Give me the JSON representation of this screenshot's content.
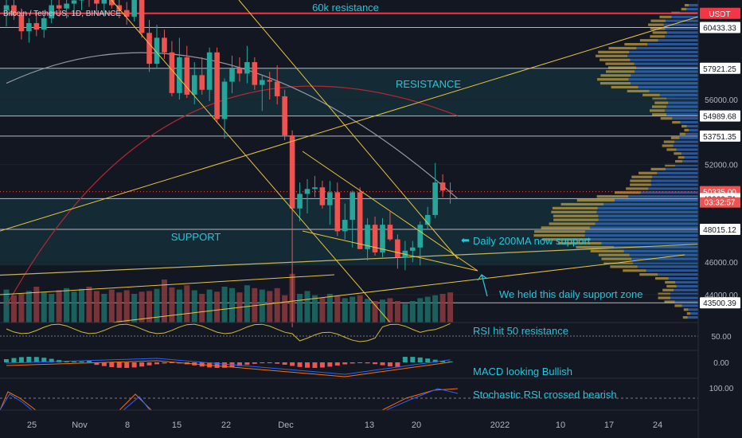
{
  "chart_data": {
    "type": "candlestick",
    "symbol_label": "Bitcoin / TetherUS, 1D, BINANCE",
    "price_axis": {
      "ticks": [
        "56000.00",
        "52000.00",
        "48000.00",
        "46000.00",
        "44000.00"
      ],
      "range": [
        42500,
        62000
      ]
    },
    "tags": [
      {
        "price": 61300,
        "label": "USDT",
        "color": "#f23645",
        "text_color": "#ffffff"
      },
      {
        "price": 60433.33,
        "label": "60433.33",
        "color": "#ffffff",
        "text_color": "#131722"
      },
      {
        "price": 57921.25,
        "label": "57921.25",
        "color": "#ffffff",
        "text_color": "#131722"
      },
      {
        "price": 54989.68,
        "label": "54989.68",
        "color": "#ffffff",
        "text_color": "#131722"
      },
      {
        "price": 53751.35,
        "label": "53751.35",
        "color": "#ffffff",
        "text_color": "#131722"
      },
      {
        "price": 50335.0,
        "label": "50335.00",
        "color": "#ef5350",
        "text_color": "#ffffff"
      },
      {
        "price": 49909.71,
        "label": "49909.71",
        "color": "#ffffff",
        "text_color": "#131722"
      },
      {
        "price": 48015.12,
        "label": "48015.12",
        "color": "#ffffff",
        "text_color": "#131722"
      },
      {
        "price": 43500.39,
        "label": "43500.39",
        "color": "#ffffff",
        "text_color": "#131722"
      }
    ],
    "countdown": "03:32:57",
    "date_axis": [
      "25",
      "Nov",
      "8",
      "15",
      "22",
      "Dec",
      "13",
      "20",
      "2022",
      "10",
      "17",
      "24"
    ],
    "levels": [
      {
        "name": "60k resistance",
        "price": 61300,
        "color": "#f23645"
      },
      {
        "name": "",
        "price": 60433.33,
        "color": "#d1d4dc"
      },
      {
        "name": "",
        "price": 57921.25,
        "color": "#d1d4dc"
      },
      {
        "name": "",
        "price": 54989.68,
        "color": "#d1d4dc"
      },
      {
        "name": "",
        "price": 53751.35,
        "color": "#d1d4dc"
      },
      {
        "name": "",
        "price": 49909.71,
        "color": "#d1d4dc"
      },
      {
        "name": "",
        "price": 48015.12,
        "color": "#d1d4dc"
      },
      {
        "name": "",
        "price": 43500.39,
        "color": "#d1d4dc"
      }
    ],
    "zones": [
      {
        "name": "RESISTANCE",
        "from": 55000,
        "to": 57921.25
      },
      {
        "name": "SUPPORT",
        "from": 45800,
        "to": 49909.71
      }
    ],
    "candles": [
      [
        61500,
        62500,
        60500,
        61800
      ],
      [
        61800,
        62200,
        60900,
        61200
      ],
      [
        61200,
        61600,
        59700,
        60200
      ],
      [
        60200,
        61000,
        59500,
        60700
      ],
      [
        60700,
        61400,
        59900,
        60300
      ],
      [
        60300,
        61200,
        59800,
        61000
      ],
      [
        61000,
        62300,
        60700,
        61800
      ],
      [
        61800,
        62400,
        61100,
        61600
      ],
      [
        61600,
        62200,
        61000,
        61900
      ],
      [
        61900,
        62500,
        61200,
        62100
      ],
      [
        62100,
        62800,
        61500,
        62400
      ],
      [
        62400,
        63000,
        61700,
        62200
      ],
      [
        62200,
        62900,
        61400,
        61900
      ],
      [
        61900,
        62600,
        61100,
        62300
      ],
      [
        62300,
        62700,
        61600,
        61800
      ],
      [
        61800,
        62400,
        61000,
        61500
      ],
      [
        61500,
        62000,
        60600,
        61100
      ],
      [
        61100,
        63500,
        60800,
        62600
      ],
      [
        62600,
        63200,
        59800,
        60100
      ],
      [
        60100,
        60900,
        57700,
        58200
      ],
      [
        58200,
        60600,
        57900,
        59800
      ],
      [
        59800,
        60300,
        58500,
        58900
      ],
      [
        58900,
        59600,
        56200,
        56400
      ],
      [
        56400,
        59800,
        56000,
        58600
      ],
      [
        58600,
        59300,
        56100,
        56300
      ],
      [
        56300,
        58300,
        55700,
        57500
      ],
      [
        57500,
        58600,
        56300,
        56600
      ],
      [
        56600,
        59200,
        55900,
        58900
      ],
      [
        58900,
        59200,
        54600,
        54800
      ],
      [
        54800,
        57300,
        53600,
        57100
      ],
      [
        57100,
        58700,
        56400,
        57900
      ],
      [
        57900,
        58600,
        57100,
        57600
      ],
      [
        57600,
        59300,
        57000,
        58300
      ],
      [
        58300,
        58600,
        56600,
        56900
      ],
      [
        56900,
        57500,
        55300,
        57200
      ],
      [
        57200,
        57700,
        56000,
        57100
      ],
      [
        57100,
        58100,
        55700,
        56200
      ],
      [
        56200,
        56600,
        53500,
        53800
      ],
      [
        53800,
        54100,
        42000,
        49300
      ],
      [
        49300,
        50900,
        48500,
        50200
      ],
      [
        50200,
        51100,
        49000,
        50500
      ],
      [
        50500,
        51300,
        50000,
        50600
      ],
      [
        50600,
        51000,
        49300,
        49500
      ],
      [
        49500,
        51000,
        48300,
        50300
      ],
      [
        50300,
        50900,
        47600,
        47900
      ],
      [
        47900,
        49600,
        47400,
        48600
      ],
      [
        48600,
        50400,
        46900,
        50300
      ],
      [
        50300,
        50600,
        46800,
        46800
      ],
      [
        46800,
        48700,
        46100,
        48300
      ],
      [
        48300,
        48800,
        46400,
        46600
      ],
      [
        46600,
        48700,
        46300,
        48300
      ],
      [
        48300,
        49100,
        47300,
        47400
      ],
      [
        47400,
        47700,
        45600,
        46300
      ],
      [
        46300,
        47300,
        45500,
        46700
      ],
      [
        46700,
        47300,
        46000,
        46900
      ],
      [
        46900,
        48500,
        45800,
        48300
      ],
      [
        48300,
        49400,
        48000,
        48900
      ],
      [
        48900,
        52100,
        48700,
        50900
      ],
      [
        50900,
        51400,
        50000,
        50400
      ],
      [
        50400,
        50900,
        49600,
        50335
      ]
    ],
    "ma_200": {
      "color": "#9598a1",
      "from": [
        7,
        61800
      ],
      "to": [
        59,
        49900
      ]
    },
    "ma_red": {
      "color": "#b22833",
      "from": [
        0,
        43300
      ],
      "to": [
        60,
        55000
      ]
    },
    "ma_support": {
      "color": "#c5b456",
      "from": [
        0,
        45200
      ],
      "to": [
        80,
        47100
      ]
    },
    "volume": [
      46,
      38,
      40,
      44,
      50,
      42,
      40,
      45,
      48,
      43,
      47,
      50,
      44,
      40,
      46,
      42,
      45,
      40,
      43,
      44,
      47,
      60,
      49,
      46,
      52,
      45,
      40,
      46,
      43,
      50,
      48,
      42,
      52,
      48,
      46,
      44,
      48,
      38,
      68,
      40,
      44,
      38,
      35,
      40,
      37,
      34,
      36,
      38,
      33,
      30,
      32,
      34,
      30,
      26,
      30,
      34,
      36,
      38,
      40,
      42
    ],
    "indicators": [
      {
        "name": "RSI",
        "ticks": [
          "50.00"
        ]
      },
      {
        "name": "MACD",
        "ticks": [
          "0.00"
        ]
      },
      {
        "name": "Stochastic RSI",
        "ticks": [
          "100.00"
        ]
      }
    ],
    "annotations": [
      "Daily 200MA now support",
      "We held this daily support zone",
      "RSI hit 50 resistance",
      "MACD looking Bullish",
      "Stochastic RSI crossed bearish"
    ],
    "colors": {
      "bull": "#26a69a",
      "bear": "#ef5350",
      "annotation": "#26c6da",
      "trendline": "#e8c341",
      "volume_profile": "#2f6cc4",
      "profile_poc": "#c9a842"
    }
  }
}
